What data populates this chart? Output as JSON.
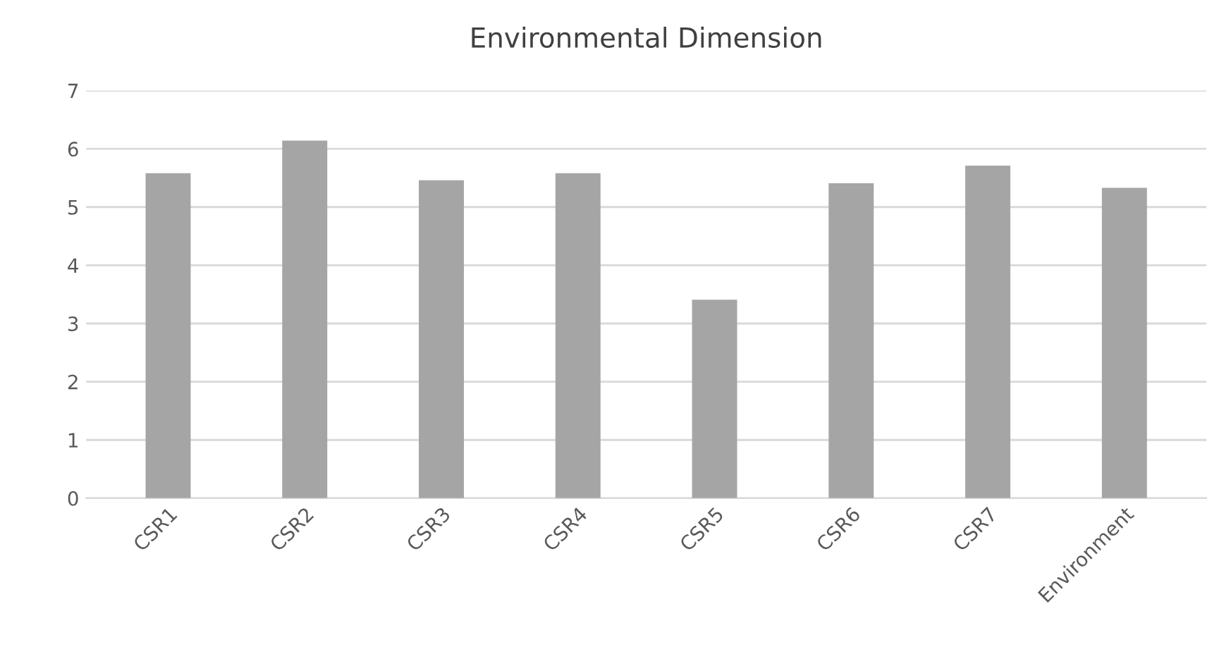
{
  "chart_data": {
    "type": "bar",
    "title": "Environmental Dimension",
    "categories": [
      "CSR1",
      "CSR2",
      "CSR3",
      "CSR4",
      "CSR5",
      "CSR6",
      "CSR7",
      "Environment"
    ],
    "values": [
      5.58,
      6.14,
      5.46,
      5.58,
      3.41,
      5.41,
      5.71,
      5.33
    ],
    "color": "#a5a5a5",
    "ylim": [
      0,
      7
    ],
    "yticks": [
      0,
      1,
      2,
      3,
      4,
      5,
      6,
      7
    ],
    "grid": "y"
  }
}
